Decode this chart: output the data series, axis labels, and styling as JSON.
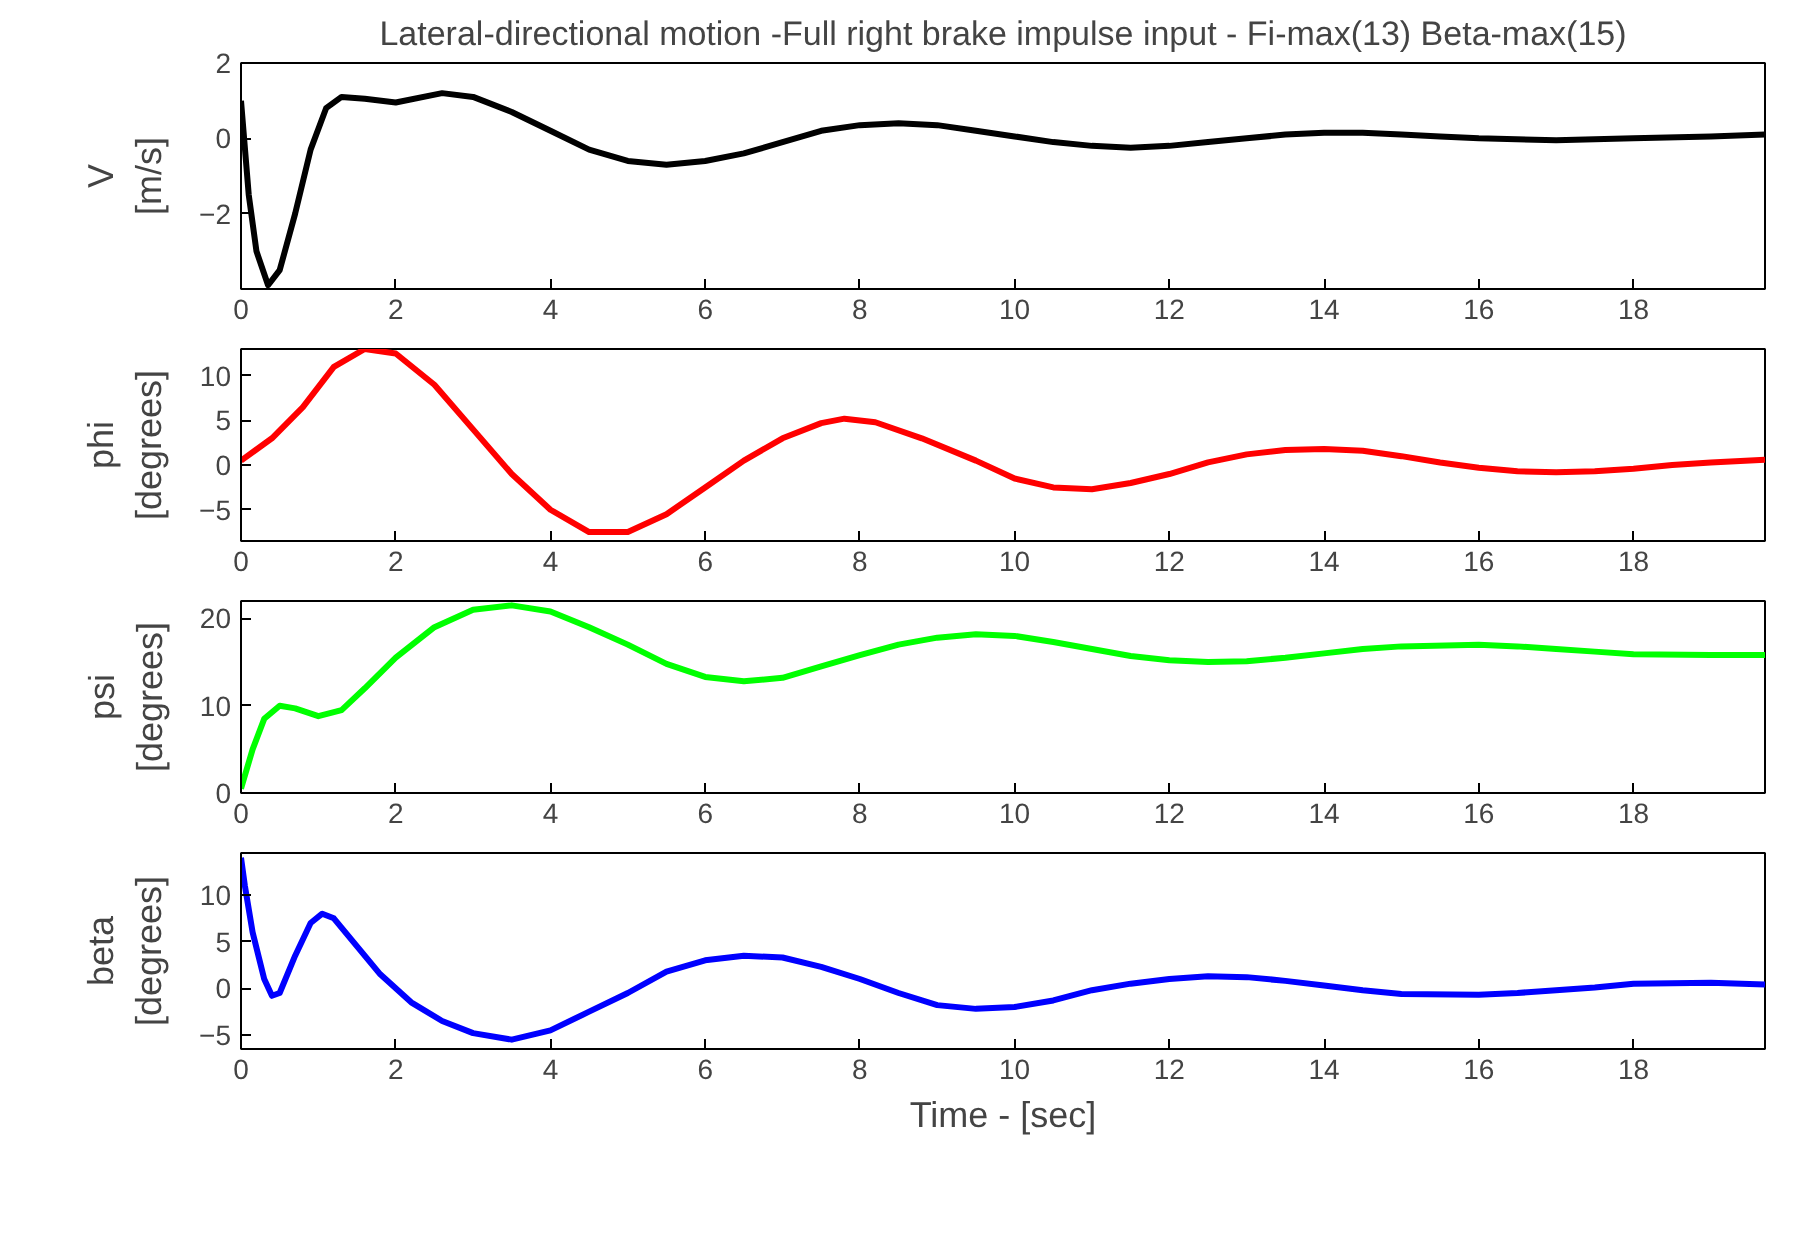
{
  "chart_data": [
    {
      "type": "line",
      "title": "Lateral-directional motion -Full right brake impulse input - Fi-max(13) Beta-max(15)",
      "ylabel": "V [m/s]",
      "xlim": [
        0,
        19.7
      ],
      "ylim": [
        -4,
        2
      ],
      "xticks": [
        0,
        2,
        4,
        6,
        8,
        10,
        12,
        14,
        16,
        18
      ],
      "yticks": [
        -2,
        0,
        2
      ],
      "x": [
        0,
        0.1,
        0.2,
        0.35,
        0.5,
        0.7,
        0.9,
        1.1,
        1.3,
        1.6,
        2.0,
        2.6,
        3.0,
        3.5,
        4.0,
        4.5,
        5.0,
        5.5,
        6.0,
        6.5,
        7.0,
        7.5,
        8.0,
        8.5,
        9.0,
        9.5,
        10,
        10.5,
        11,
        11.5,
        12,
        12.5,
        13,
        13.5,
        14,
        14.5,
        15,
        15.5,
        16,
        17,
        18,
        19,
        19.7
      ],
      "series": [
        {
          "color": "#000000",
          "values": [
            1.0,
            -1.5,
            -3,
            -3.9,
            -3.5,
            -2,
            -0.3,
            0.8,
            1.1,
            1.05,
            0.95,
            1.2,
            1.1,
            0.7,
            0.2,
            -0.3,
            -0.6,
            -0.7,
            -0.6,
            -0.4,
            -0.1,
            0.2,
            0.35,
            0.4,
            0.35,
            0.2,
            0.05,
            -0.1,
            -0.2,
            -0.25,
            -0.2,
            -0.1,
            0.0,
            0.1,
            0.15,
            0.15,
            0.1,
            0.05,
            0,
            -0.05,
            0,
            0.05,
            0.1
          ]
        }
      ]
    },
    {
      "type": "line",
      "ylabel": "phi [degrees]",
      "xlim": [
        0,
        19.7
      ],
      "ylim": [
        -8.5,
        13
      ],
      "xticks": [
        0,
        2,
        4,
        6,
        8,
        10,
        12,
        14,
        16,
        18
      ],
      "yticks": [
        -5,
        0,
        5,
        10
      ],
      "x": [
        0,
        0.4,
        0.8,
        1.2,
        1.6,
        2.0,
        2.5,
        3.0,
        3.5,
        4.0,
        4.5,
        5.0,
        5.5,
        6.0,
        6.5,
        7.0,
        7.5,
        7.8,
        8.2,
        8.8,
        9.5,
        10.0,
        10.5,
        11.0,
        11.5,
        12.0,
        12.5,
        13.0,
        13.5,
        14.0,
        14.5,
        15,
        15.5,
        16,
        16.5,
        17,
        17.5,
        18,
        18.5,
        19,
        19.7
      ],
      "series": [
        {
          "color": "#ff0000",
          "values": [
            0.5,
            3,
            6.5,
            11,
            13,
            12.5,
            9,
            4,
            -1,
            -5,
            -7.5,
            -7.5,
            -5.5,
            -2.5,
            0.5,
            3,
            4.7,
            5.2,
            4.8,
            3,
            0.5,
            -1.5,
            -2.5,
            -2.7,
            -2,
            -1,
            0.3,
            1.2,
            1.7,
            1.8,
            1.6,
            1,
            0.3,
            -0.3,
            -0.7,
            -0.8,
            -0.7,
            -0.4,
            0,
            0.3,
            0.6
          ]
        }
      ]
    },
    {
      "type": "line",
      "ylabel": "psi [degrees]",
      "xlim": [
        0,
        19.7
      ],
      "ylim": [
        0,
        22
      ],
      "xticks": [
        0,
        2,
        4,
        6,
        8,
        10,
        12,
        14,
        16,
        18
      ],
      "yticks": [
        0,
        10,
        20
      ],
      "x": [
        0,
        0.15,
        0.3,
        0.5,
        0.7,
        1.0,
        1.3,
        1.6,
        2.0,
        2.5,
        3.0,
        3.5,
        4.0,
        4.5,
        5.0,
        5.5,
        6.0,
        6.5,
        7.0,
        7.5,
        8.0,
        8.5,
        9.0,
        9.5,
        10,
        10.5,
        11,
        11.5,
        12,
        12.5,
        13,
        13.5,
        14,
        14.5,
        15,
        16,
        16.5,
        17,
        17.5,
        18,
        19,
        19.7
      ],
      "series": [
        {
          "color": "#00ff00",
          "values": [
            0.5,
            5,
            8.5,
            10,
            9.7,
            8.8,
            9.5,
            12,
            15.5,
            19,
            21,
            21.5,
            20.8,
            19,
            17,
            14.8,
            13.3,
            12.8,
            13.2,
            14.5,
            15.8,
            17,
            17.8,
            18.2,
            18,
            17.3,
            16.5,
            15.7,
            15.2,
            15,
            15.1,
            15.5,
            16,
            16.5,
            16.8,
            17,
            16.8,
            16.5,
            16.2,
            15.9,
            15.8,
            15.8
          ]
        }
      ]
    },
    {
      "type": "line",
      "ylabel": "beta [degrees]",
      "xlabel": "Time - [sec]",
      "xlim": [
        0,
        19.7
      ],
      "ylim": [
        -6.5,
        14.5
      ],
      "xticks": [
        0,
        2,
        4,
        6,
        8,
        10,
        12,
        14,
        16,
        18
      ],
      "yticks": [
        -5,
        0,
        5,
        10
      ],
      "x": [
        0,
        0.05,
        0.15,
        0.3,
        0.4,
        0.5,
        0.7,
        0.9,
        1.05,
        1.2,
        1.5,
        1.8,
        2.2,
        2.6,
        3.0,
        3.5,
        4.0,
        4.5,
        5.0,
        5.5,
        6.0,
        6.5,
        7.0,
        7.5,
        8.0,
        8.5,
        9.0,
        9.5,
        10,
        10.5,
        11,
        11.5,
        12,
        12.5,
        13,
        13.5,
        14,
        14.5,
        15,
        16,
        16.5,
        17,
        17.5,
        18,
        19,
        19.7
      ],
      "series": [
        {
          "color": "#0000ff",
          "values": [
            14,
            11,
            6,
            1,
            -0.8,
            -0.5,
            3.5,
            7,
            8,
            7.5,
            4.5,
            1.5,
            -1.5,
            -3.5,
            -4.8,
            -5.5,
            -4.5,
            -2.5,
            -0.5,
            1.8,
            3,
            3.5,
            3.3,
            2.3,
            1,
            -0.5,
            -1.8,
            -2.2,
            -2,
            -1.3,
            -0.2,
            0.5,
            1,
            1.3,
            1.2,
            0.8,
            0.3,
            -0.2,
            -0.6,
            -0.7,
            -0.5,
            -0.2,
            0.1,
            0.5,
            0.6,
            0.4
          ]
        }
      ]
    }
  ]
}
